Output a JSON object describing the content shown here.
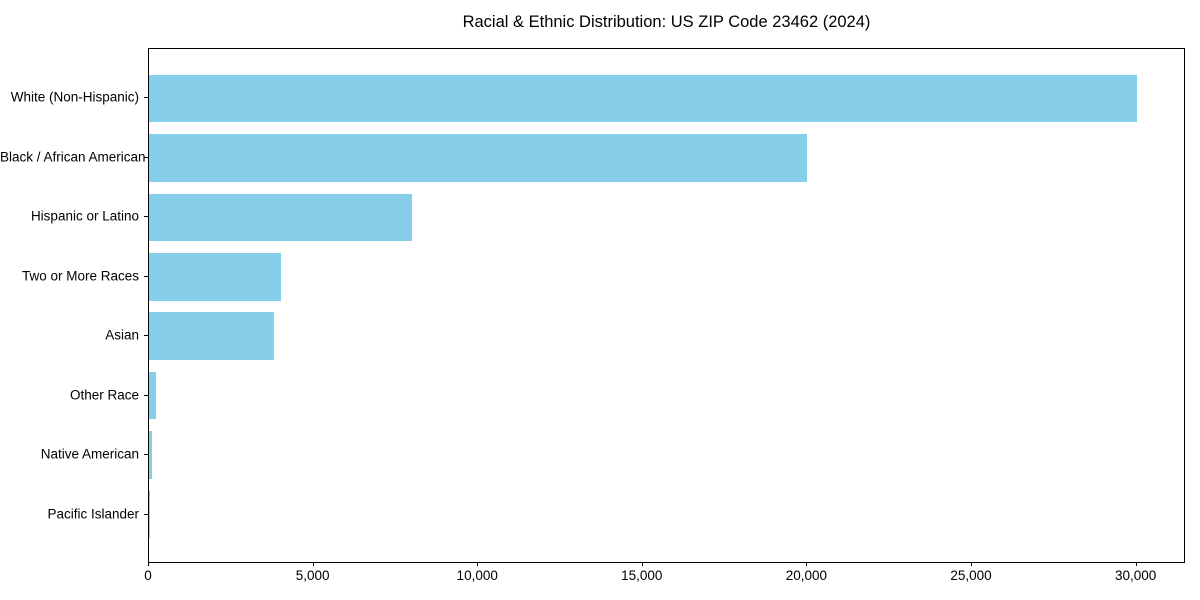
{
  "figure": {
    "background_color": "#ffffff",
    "bar_color": "#87CEEB",
    "spine_color": "#000000",
    "text_color": "#000000"
  },
  "chart_data": {
    "type": "bar",
    "orientation": "horizontal",
    "title": "Racial & Ethnic Distribution: US ZIP Code 23462 (2024)",
    "categories": [
      "White (Non-Hispanic)",
      "Black / African American",
      "Hispanic or Latino",
      "Two or More Races",
      "Asian",
      "Other Race",
      "Native American",
      "Pacific Islander"
    ],
    "values": [
      30000,
      20000,
      8000,
      4000,
      3800,
      220,
      100,
      20
    ],
    "xlabel": "",
    "ylabel": "",
    "xlim": [
      0,
      31500
    ],
    "x_ticks": [
      0,
      5000,
      10000,
      15000,
      20000,
      25000,
      30000
    ],
    "x_tick_labels": [
      "0",
      "5,000",
      "10,000",
      "15,000",
      "20,000",
      "25,000",
      "30,000"
    ],
    "grid": false,
    "legend": "none",
    "bar_relative_height": 0.8
  }
}
